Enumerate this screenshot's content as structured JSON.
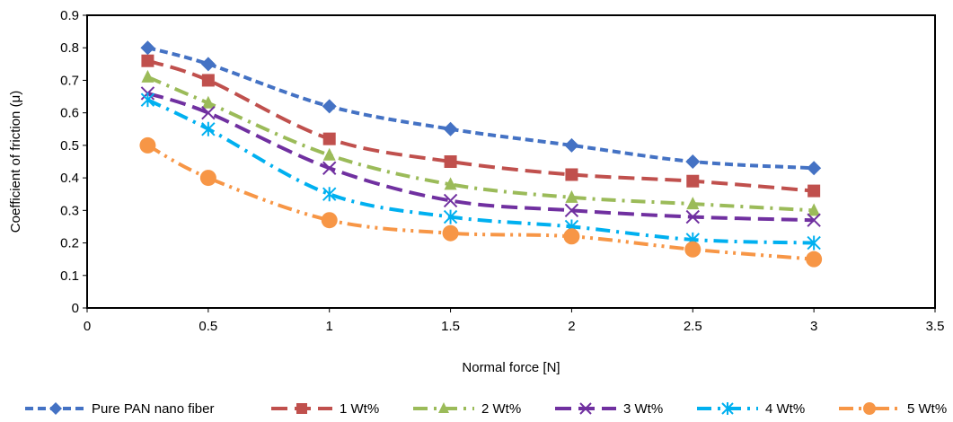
{
  "chart_data": {
    "type": "line",
    "title": "",
    "xlabel": "Normal force [N]",
    "ylabel": "Coefficient of friction (μ)",
    "xlim": [
      0,
      3.5
    ],
    "ylim": [
      0,
      0.9
    ],
    "x_ticks": [
      "0",
      "0.5",
      "1",
      "1.5",
      "2",
      "2.5",
      "3",
      "3.5"
    ],
    "y_ticks": [
      "0",
      "0.1",
      "0.2",
      "0.3",
      "0.4",
      "0.5",
      "0.6",
      "0.7",
      "0.8",
      "0.9"
    ],
    "x": [
      0.25,
      0.5,
      1,
      1.5,
      2,
      2.5,
      3
    ],
    "grid": false,
    "legend_position": "bottom",
    "series": [
      {
        "name": "Pure PAN nano fiber",
        "values": [
          0.8,
          0.75,
          0.62,
          0.55,
          0.5,
          0.45,
          0.43
        ],
        "color": "#4472C4",
        "marker": "diamond",
        "dash": "short-dash"
      },
      {
        "name": "1 Wt%",
        "values": [
          0.76,
          0.7,
          0.52,
          0.45,
          0.41,
          0.39,
          0.36
        ],
        "color": "#C0504D",
        "marker": "square",
        "dash": "long-dash"
      },
      {
        "name": "2 Wt%",
        "values": [
          0.71,
          0.63,
          0.47,
          0.38,
          0.34,
          0.32,
          0.3
        ],
        "color": "#9BBB59",
        "marker": "triangle",
        "dash": "dash-dot"
      },
      {
        "name": "3 Wt%",
        "values": [
          0.66,
          0.6,
          0.43,
          0.33,
          0.3,
          0.28,
          0.27
        ],
        "color": "#7030A0",
        "marker": "x",
        "dash": "long-dash"
      },
      {
        "name": "4 Wt%",
        "values": [
          0.64,
          0.55,
          0.35,
          0.28,
          0.25,
          0.21,
          0.2
        ],
        "color": "#00B0F0",
        "marker": "star",
        "dash": "dash-dot"
      },
      {
        "name": "5 Wt%",
        "values": [
          0.5,
          0.4,
          0.27,
          0.23,
          0.22,
          0.18,
          0.15
        ],
        "color": "#F79646",
        "marker": "circle",
        "dash": "dash-dot-dot"
      }
    ]
  }
}
